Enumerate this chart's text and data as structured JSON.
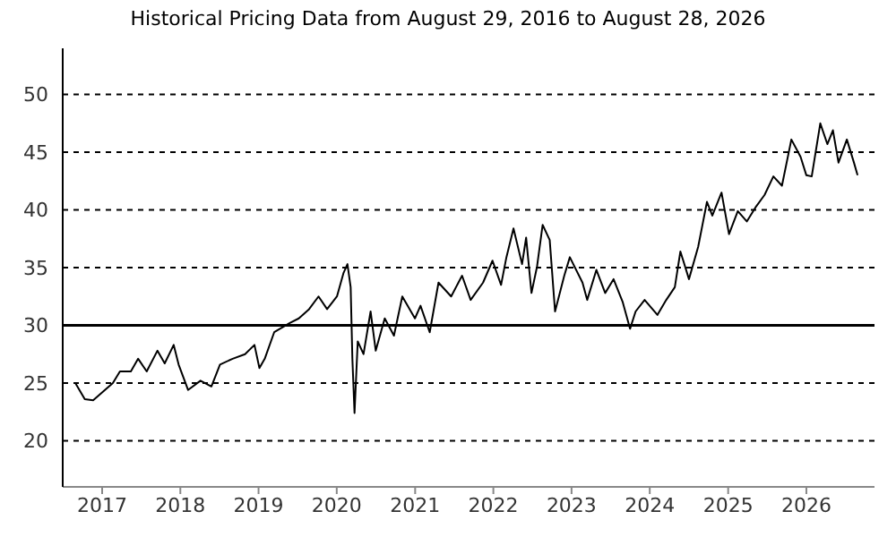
{
  "chart_data": {
    "type": "line",
    "title": "Historical Pricing Data from August 29, 2016 to August 28, 2026",
    "x": [
      "2016-08-29",
      "2016-10-12",
      "2016-11-20",
      "2017-02-20",
      "2017-03-25",
      "2017-05-15",
      "2017-06-18",
      "2017-07-28",
      "2017-09-16",
      "2017-10-20",
      "2017-12-01",
      "2017-12-24",
      "2018-02-06",
      "2018-04-05",
      "2018-05-26",
      "2018-07-05",
      "2018-09-02",
      "2018-10-30",
      "2018-12-13",
      "2019-01-05",
      "2019-01-30",
      "2019-03-15",
      "2019-05-27",
      "2019-07-08",
      "2019-08-25",
      "2019-10-08",
      "2019-11-17",
      "2020-01-02",
      "2020-02-01",
      "2020-02-20",
      "2020-03-06",
      "2020-03-14",
      "2020-03-24",
      "2020-04-08",
      "2020-05-05",
      "2020-06-07",
      "2020-07-01",
      "2020-08-12",
      "2020-09-24",
      "2020-11-02",
      "2020-12-31",
      "2021-01-26",
      "2021-03-10",
      "2021-04-20",
      "2021-06-18",
      "2021-08-08",
      "2021-09-17",
      "2021-11-14",
      "2021-12-28",
      "2022-02-06",
      "2022-03-03",
      "2022-04-05",
      "2022-05-15",
      "2022-06-03",
      "2022-06-28",
      "2022-07-24",
      "2022-08-19",
      "2022-09-21",
      "2022-10-16",
      "2022-11-28",
      "2022-12-24",
      "2023-02-21",
      "2023-03-15",
      "2023-04-27",
      "2023-06-07",
      "2023-07-16",
      "2023-08-28",
      "2023-10-01",
      "2023-10-27",
      "2023-12-08",
      "2024-02-06",
      "2024-03-18",
      "2024-04-27",
      "2024-05-23",
      "2024-07-02",
      "2024-08-14",
      "2024-09-24",
      "2024-10-19",
      "2024-12-01",
      "2025-01-05",
      "2025-02-15",
      "2025-03-29",
      "2025-05-08",
      "2025-06-20",
      "2025-07-31",
      "2025-09-09",
      "2025-10-23",
      "2025-12-05",
      "2026-01-01",
      "2026-01-26",
      "2026-03-07",
      "2026-04-09",
      "2026-05-05",
      "2026-05-31",
      "2026-07-09",
      "2026-08-11",
      "2026-08-28"
    ],
    "series": [
      {
        "color": "#000000",
        "values": [
          25.0,
          23.6,
          23.5,
          25.0,
          26.0,
          26.0,
          27.1,
          26.0,
          27.8,
          26.7,
          28.3,
          26.6,
          24.4,
          25.2,
          24.7,
          26.6,
          27.1,
          27.5,
          28.3,
          26.3,
          27.1,
          29.4,
          30.2,
          30.6,
          31.4,
          32.5,
          31.4,
          32.5,
          34.5,
          35.3,
          33.3,
          27.1,
          22.4,
          28.6,
          27.5,
          31.2,
          27.8,
          30.6,
          29.1,
          32.5,
          30.6,
          31.7,
          29.4,
          33.7,
          32.5,
          34.3,
          32.2,
          33.7,
          35.6,
          33.5,
          35.9,
          38.4,
          35.3,
          37.6,
          32.8,
          35.1,
          38.7,
          37.4,
          31.2,
          34.3,
          35.9,
          33.7,
          32.2,
          34.8,
          32.8,
          34.0,
          32.0,
          29.7,
          31.2,
          32.2,
          30.9,
          32.2,
          33.3,
          36.4,
          34.0,
          36.8,
          40.7,
          39.5,
          41.5,
          37.9,
          39.9,
          39.0,
          40.2,
          41.3,
          42.9,
          42.1,
          46.1,
          44.6,
          43.0,
          42.9,
          47.5,
          45.7,
          46.9,
          44.1,
          46.1,
          44.1,
          43.0
        ]
      }
    ],
    "xlim": [
      "2016-07-01",
      "2026-11-15"
    ],
    "xticks": [
      {
        "value": "2017-01-01",
        "label": "2017"
      },
      {
        "value": "2018-01-01",
        "label": "2018"
      },
      {
        "value": "2019-01-01",
        "label": "2019"
      },
      {
        "value": "2020-01-01",
        "label": "2020"
      },
      {
        "value": "2021-01-01",
        "label": "2021"
      },
      {
        "value": "2022-01-01",
        "label": "2022"
      },
      {
        "value": "2023-01-01",
        "label": "2023"
      },
      {
        "value": "2024-01-01",
        "label": "2024"
      },
      {
        "value": "2025-01-01",
        "label": "2025"
      },
      {
        "value": "2026-01-01",
        "label": "2026"
      }
    ],
    "ylim": [
      16,
      54
    ],
    "yticks": [
      20,
      25,
      30,
      35,
      40,
      45,
      50
    ],
    "grid": "y",
    "legend": false,
    "marker": "none",
    "line_style": "solid",
    "ref_lines": [
      {
        "axis": "y",
        "value": 30,
        "color": "#000000",
        "line_style": "solid"
      }
    ]
  }
}
